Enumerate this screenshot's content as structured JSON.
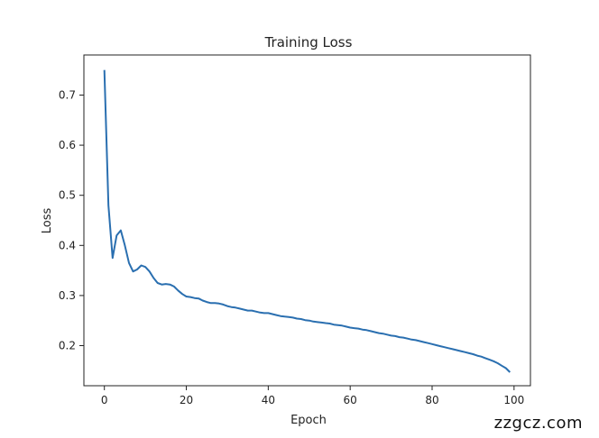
{
  "watermark": "zzgcz.com",
  "chart_data": {
    "type": "line",
    "title": "Training Loss",
    "xlabel": "Epoch",
    "ylabel": "Loss",
    "xlim": [
      -5,
      104
    ],
    "ylim": [
      0.12,
      0.78
    ],
    "xticks": [
      0,
      20,
      40,
      60,
      80,
      100
    ],
    "yticks": [
      0.2,
      0.3,
      0.4,
      0.5,
      0.6,
      0.7
    ],
    "ytick_labels": [
      "0.2",
      "0.3",
      "0.4",
      "0.5",
      "0.6",
      "0.7"
    ],
    "legend": "none",
    "grid": false,
    "series": [
      {
        "color": "#2a6fb0",
        "x": [
          0,
          1,
          2,
          3,
          4,
          5,
          6,
          7,
          8,
          9,
          10,
          11,
          12,
          13,
          14,
          15,
          16,
          17,
          18,
          19,
          20,
          21,
          22,
          23,
          24,
          25,
          26,
          27,
          28,
          29,
          30,
          31,
          32,
          33,
          34,
          35,
          36,
          37,
          38,
          39,
          40,
          41,
          42,
          43,
          44,
          45,
          46,
          47,
          48,
          49,
          50,
          51,
          52,
          53,
          54,
          55,
          56,
          57,
          58,
          59,
          60,
          61,
          62,
          63,
          64,
          65,
          66,
          67,
          68,
          69,
          70,
          71,
          72,
          73,
          74,
          75,
          76,
          77,
          78,
          79,
          80,
          81,
          82,
          83,
          84,
          85,
          86,
          87,
          88,
          89,
          90,
          91,
          92,
          93,
          94,
          95,
          96,
          97,
          98,
          99
        ],
        "values": [
          0.75,
          0.48,
          0.375,
          0.42,
          0.43,
          0.4,
          0.365,
          0.348,
          0.352,
          0.36,
          0.357,
          0.348,
          0.335,
          0.325,
          0.322,
          0.323,
          0.322,
          0.318,
          0.31,
          0.303,
          0.298,
          0.297,
          0.295,
          0.294,
          0.29,
          0.287,
          0.285,
          0.285,
          0.284,
          0.282,
          0.279,
          0.277,
          0.276,
          0.274,
          0.272,
          0.27,
          0.27,
          0.268,
          0.266,
          0.265,
          0.265,
          0.263,
          0.261,
          0.259,
          0.258,
          0.257,
          0.256,
          0.254,
          0.253,
          0.251,
          0.25,
          0.248,
          0.247,
          0.246,
          0.245,
          0.244,
          0.242,
          0.241,
          0.24,
          0.238,
          0.236,
          0.235,
          0.234,
          0.232,
          0.231,
          0.229,
          0.227,
          0.225,
          0.224,
          0.222,
          0.22,
          0.219,
          0.217,
          0.216,
          0.214,
          0.212,
          0.211,
          0.209,
          0.207,
          0.205,
          0.203,
          0.201,
          0.199,
          0.197,
          0.195,
          0.193,
          0.191,
          0.189,
          0.187,
          0.185,
          0.183,
          0.18,
          0.178,
          0.175,
          0.172,
          0.169,
          0.165,
          0.16,
          0.155,
          0.147
        ]
      }
    ]
  }
}
